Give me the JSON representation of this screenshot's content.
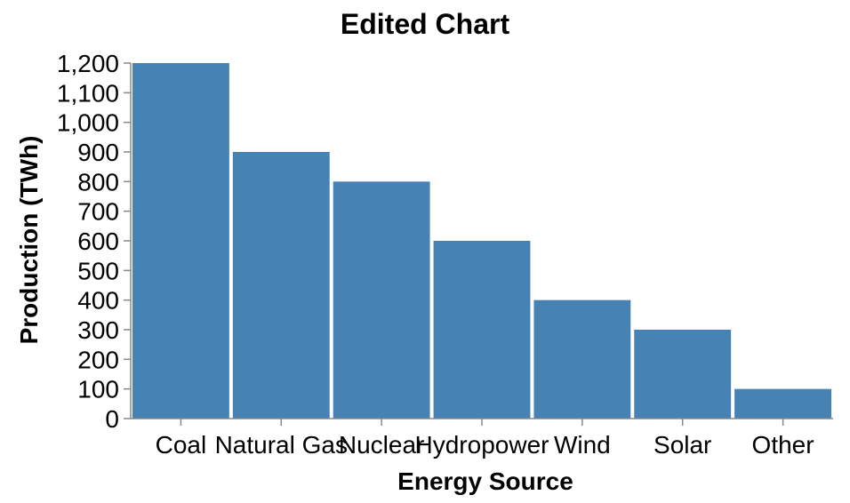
{
  "chart_data": {
    "type": "bar",
    "title": "Edited Chart",
    "xlabel": "Energy Source",
    "ylabel": "Production (TWh)",
    "categories": [
      "Coal",
      "Natural Gas",
      "Nuclear",
      "Hydropower",
      "Wind",
      "Solar",
      "Other"
    ],
    "values": [
      1200,
      900,
      800,
      600,
      400,
      300,
      100
    ],
    "ylim": [
      0,
      1200
    ],
    "yticks": [
      "0",
      "100",
      "200",
      "300",
      "400",
      "500",
      "600",
      "700",
      "800",
      "900",
      "1,000",
      "1,100",
      "1,200"
    ],
    "grid": false,
    "bar_color": "#4682b4"
  }
}
